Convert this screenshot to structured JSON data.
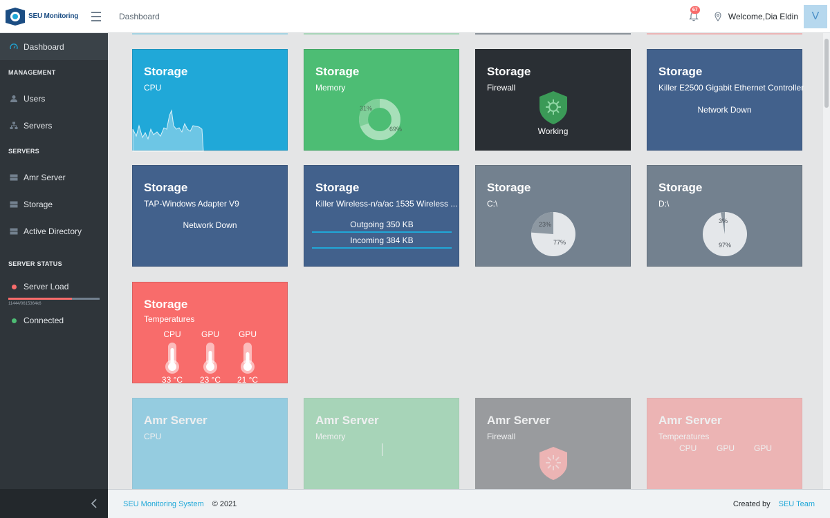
{
  "header": {
    "brand": "SEU Monitoring",
    "breadcrumb": "Dashboard",
    "notification_count": "67",
    "welcome": "Welcome,Dia Eldin",
    "avatar_letter": "V"
  },
  "sidebar": {
    "dashboard": "Dashboard",
    "management_title": "MANAGEMENT",
    "users": "Users",
    "servers": "Servers",
    "servers_title": "SERVERS",
    "amr_server": "Amr Server",
    "storage": "Storage",
    "active_directory": "Active Directory",
    "status_title": "SERVER STATUS",
    "server_load": "Server Load",
    "server_load_value": 0.7,
    "server_load_text": "11444/0615364k6",
    "connected": "Connected"
  },
  "cards": {
    "cpu": {
      "title": "Storage",
      "sub": "CPU"
    },
    "memory": {
      "title": "Storage",
      "sub": "Memory",
      "used": "31%",
      "free": "69%"
    },
    "firewall": {
      "title": "Storage",
      "sub": "Firewall",
      "status": "Working"
    },
    "eth": {
      "title": "Storage",
      "sub": "Killer E2500 Gigabit Ethernet Controller",
      "status": "Network Down"
    },
    "tap": {
      "title": "Storage",
      "sub": "TAP-Windows Adapter V9",
      "status": "Network Down"
    },
    "wireless": {
      "title": "Storage",
      "sub": "Killer Wireless-n/a/ac 1535 Wireless ...",
      "outgoing": "Outgoing 350 KB",
      "incoming": "Incoming 384 KB"
    },
    "c_drive": {
      "title": "Storage",
      "sub": "C:\\",
      "used": "23%",
      "free": "77%"
    },
    "d_drive": {
      "title": "Storage",
      "sub": "D:\\",
      "used": "3%",
      "free": "97%"
    },
    "temps": {
      "title": "Storage",
      "sub": "Temperatures",
      "sensors": [
        {
          "label": "CPU",
          "value": "33 °C"
        },
        {
          "label": "GPU",
          "value": "23 °C"
        },
        {
          "label": "GPU",
          "value": "21 °C"
        }
      ]
    },
    "amr_cpu": {
      "title": "Amr Server",
      "sub": "CPU"
    },
    "amr_memory": {
      "title": "Amr Server",
      "sub": "Memory"
    },
    "amr_firewall": {
      "title": "Amr Server",
      "sub": "Firewall"
    },
    "amr_temps": {
      "title": "Amr Server",
      "sub": "Temperatures",
      "labels": [
        "CPU",
        "GPU",
        "GPU"
      ]
    }
  },
  "footer": {
    "system": "SEU Monitoring System",
    "year": "© 2021",
    "created_by": "Created by",
    "team": "SEU Team"
  },
  "colors": {
    "blue": "#20a8d8",
    "green": "#4dbd74",
    "dark": "#2f353a",
    "navy": "#42618c",
    "gray": "#73818f",
    "red": "#f86c6b"
  }
}
